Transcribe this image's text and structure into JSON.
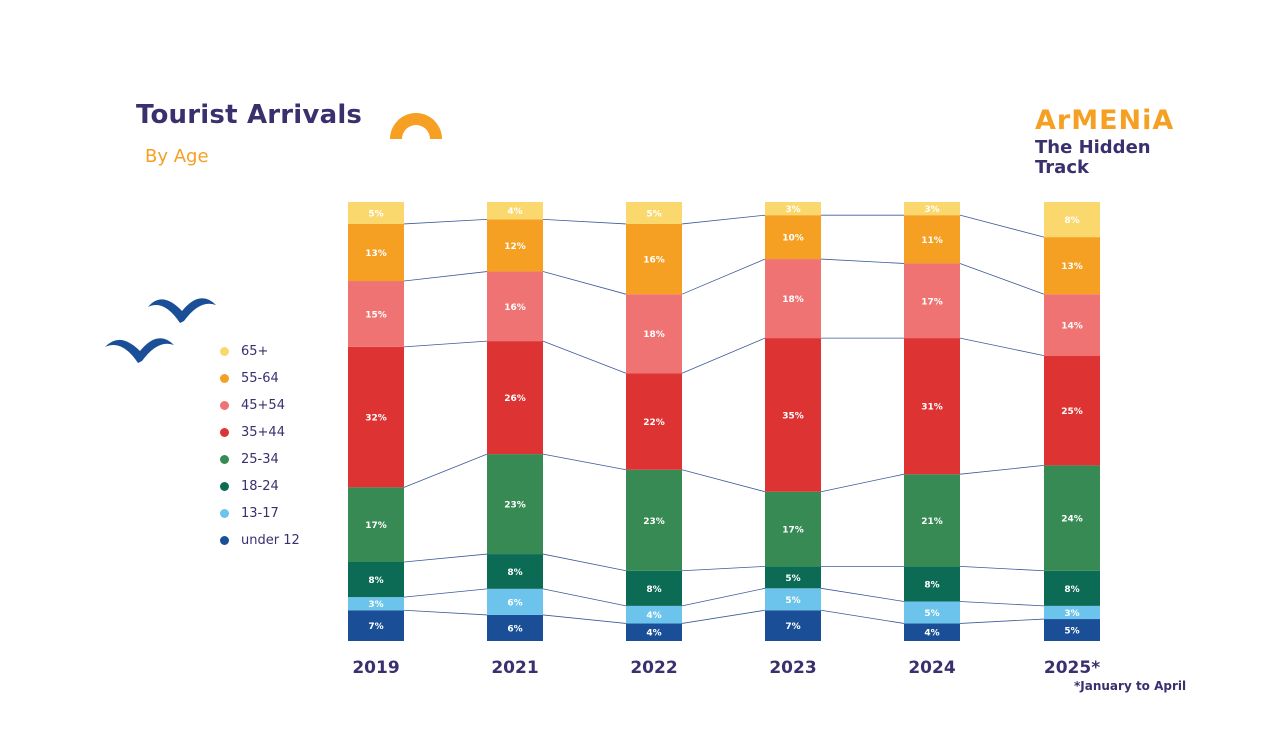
{
  "header": {
    "title": "Tourist Arrivals",
    "subtitle": "By Age"
  },
  "brand": {
    "name": "ArMENiA",
    "tagline": "The Hidden Track"
  },
  "footnote": "*January to April",
  "legend": [
    {
      "label": "65+",
      "color": "#fbd86d"
    },
    {
      "label": "55-64",
      "color": "#f5a023"
    },
    {
      "label": "45+54",
      "color": "#f07373"
    },
    {
      "label": "35+44",
      "color": "#de3333"
    },
    {
      "label": "25-34",
      "color": "#378a54"
    },
    {
      "label": "18-24",
      "color": "#0c6b55"
    },
    {
      "label": "13-17",
      "color": "#6cc4ec"
    },
    {
      "label": "under 12",
      "color": "#1a4f98"
    }
  ],
  "chart_data": {
    "type": "bar",
    "stacked": true,
    "categories": [
      "2019",
      "2021",
      "2022",
      "2023",
      "2024",
      "2025*"
    ],
    "series": [
      {
        "name": "under 12",
        "color": "#1a4f98",
        "values": [
          7,
          6,
          4,
          7,
          4,
          5
        ]
      },
      {
        "name": "13-17",
        "color": "#6cc4ec",
        "values": [
          3,
          6,
          4,
          5,
          5,
          3
        ]
      },
      {
        "name": "18-24",
        "color": "#0c6b55",
        "values": [
          8,
          8,
          8,
          5,
          8,
          8
        ]
      },
      {
        "name": "25-34",
        "color": "#378a54",
        "values": [
          17,
          23,
          23,
          17,
          21,
          24
        ]
      },
      {
        "name": "35+44",
        "color": "#de3333",
        "values": [
          32,
          26,
          22,
          35,
          31,
          25
        ]
      },
      {
        "name": "45+54",
        "color": "#f07373",
        "values": [
          15,
          16,
          18,
          18,
          17,
          14
        ]
      },
      {
        "name": "55-64",
        "color": "#f5a023",
        "values": [
          13,
          12,
          16,
          10,
          11,
          13
        ]
      },
      {
        "name": "65+",
        "color": "#fbd86d",
        "values": [
          5,
          4,
          5,
          3,
          3,
          8
        ]
      }
    ],
    "value_suffix": "%",
    "connector_lines": true,
    "grid": false,
    "legend_position": "left"
  }
}
